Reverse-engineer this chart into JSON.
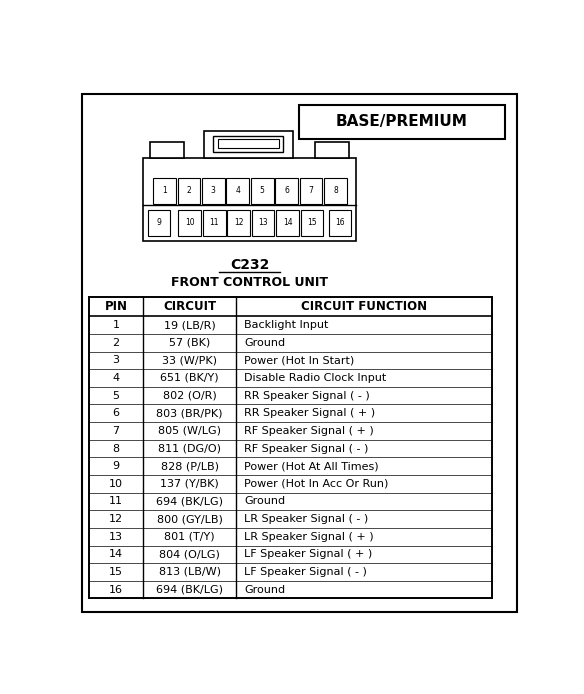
{
  "title": "BASE/PREMIUM",
  "connector_label": "C232",
  "connector_sublabel": "FRONT CONTROL UNIT",
  "table_headers": [
    "PIN",
    "CIRCUIT",
    "CIRCUIT FUNCTION"
  ],
  "table_data": [
    [
      "1",
      "19 (LB/R)",
      "Backlight Input"
    ],
    [
      "2",
      "57 (BK)",
      "Ground"
    ],
    [
      "3",
      "33 (W/PK)",
      "Power (Hot In Start)"
    ],
    [
      "4",
      "651 (BK/Y)",
      "Disable Radio Clock Input"
    ],
    [
      "5",
      "802 (O/R)",
      "RR Speaker Signal ( - )"
    ],
    [
      "6",
      "803 (BR/PK)",
      "RR Speaker Signal ( + )"
    ],
    [
      "7",
      "805 (W/LG)",
      "RF Speaker Signal ( + )"
    ],
    [
      "8",
      "811 (DG/O)",
      "RF Speaker Signal ( - )"
    ],
    [
      "9",
      "828 (P/LB)",
      "Power (Hot At All Times)"
    ],
    [
      "10",
      "137 (Y/BK)",
      "Power (Hot In Acc Or Run)"
    ],
    [
      "11",
      "694 (BK/LG)",
      "Ground"
    ],
    [
      "12",
      "800 (GY/LB)",
      "LR Speaker Signal ( - )"
    ],
    [
      "13",
      "801 (T/Y)",
      "LR Speaker Signal ( + )"
    ],
    [
      "14",
      "804 (O/LG)",
      "LF Speaker Signal ( + )"
    ],
    [
      "15",
      "813 (LB/W)",
      "LF Speaker Signal ( - )"
    ],
    [
      "16",
      "694 (BK/LG)",
      "Ground"
    ]
  ],
  "bg_color": "#ffffff",
  "border_color": "#000000",
  "text_color": "#000000"
}
